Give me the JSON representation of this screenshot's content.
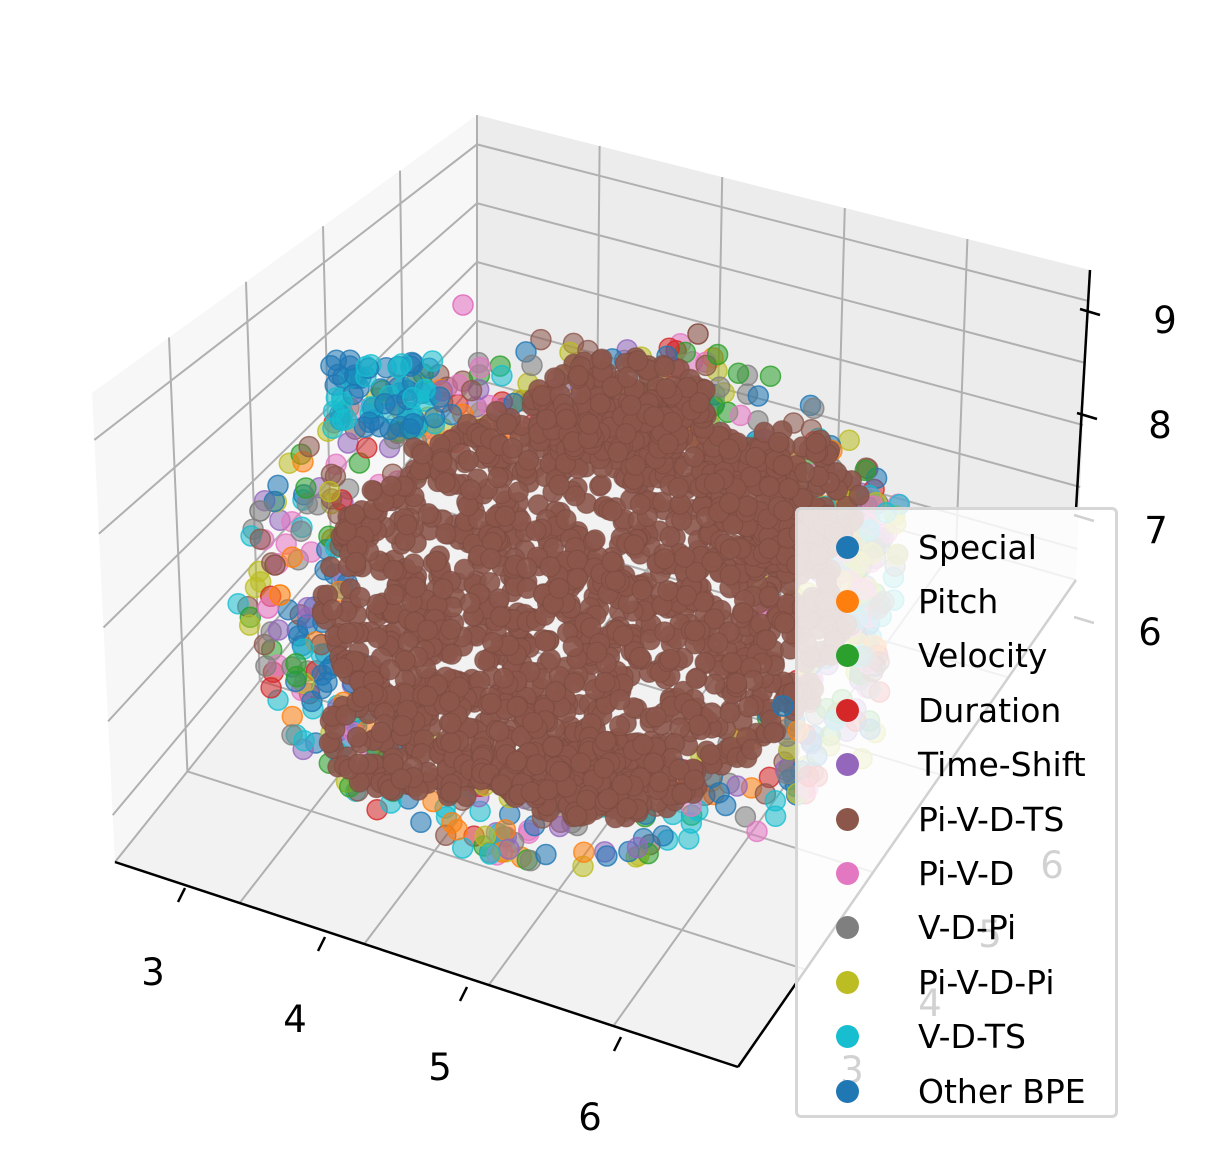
{
  "chart_data": {
    "type": "scatter",
    "projection": "3d",
    "x_ticks": [
      "3",
      "4",
      "5",
      "6"
    ],
    "y_ticks": [
      "3",
      "4",
      "5",
      "6"
    ],
    "z_ticks": [
      "6",
      "7",
      "8",
      "9"
    ],
    "xlim": [
      2.6,
      6.8
    ],
    "ylim": [
      2.6,
      6.8
    ],
    "zlim": [
      5.2,
      9.3
    ],
    "grid": true,
    "legend_position": "lower right",
    "series": [
      {
        "name": "Special",
        "color": "#1f77b4"
      },
      {
        "name": "Pitch",
        "color": "#ff7f0e"
      },
      {
        "name": "Velocity",
        "color": "#2ca02c"
      },
      {
        "name": "Duration",
        "color": "#d62728"
      },
      {
        "name": "Time-Shift",
        "color": "#9467bd"
      },
      {
        "name": "Pi-V-D-TS",
        "color": "#8c564b"
      },
      {
        "name": "Pi-V-D",
        "color": "#e377c2"
      },
      {
        "name": "V-D-Pi",
        "color": "#7f7f7f"
      },
      {
        "name": "Pi-V-D-Pi",
        "color": "#bcbd22"
      },
      {
        "name": "V-D-TS",
        "color": "#17becf"
      },
      {
        "name": "Other BPE",
        "color": "#1f77b4"
      }
    ]
  }
}
